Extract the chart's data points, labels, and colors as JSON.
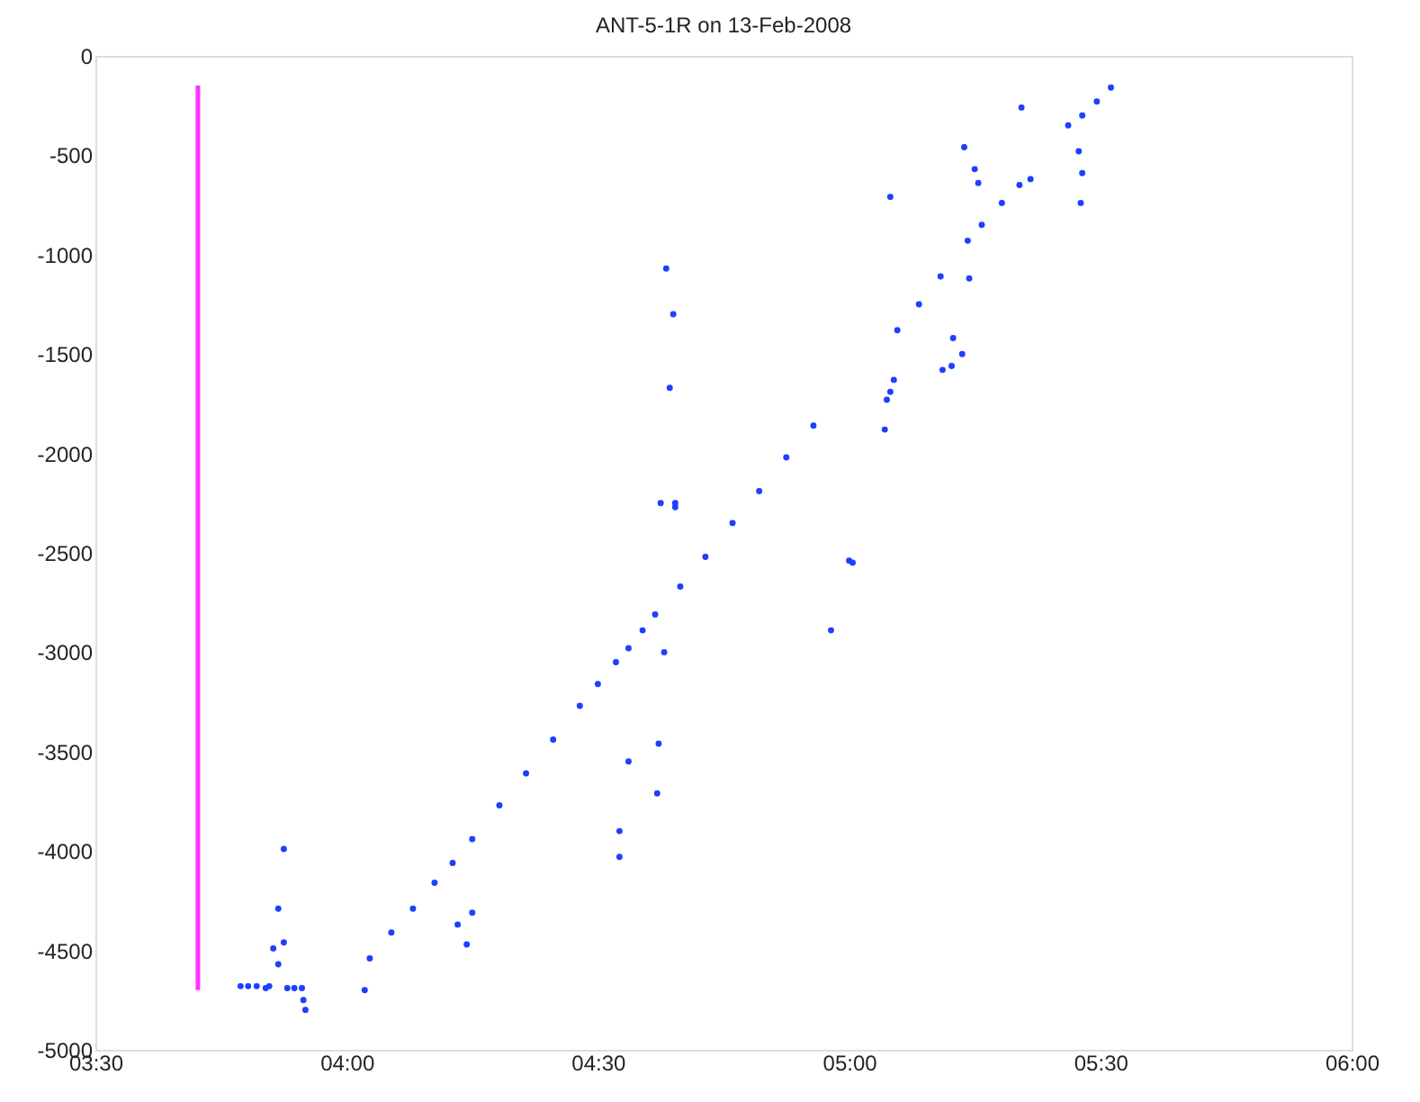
{
  "chart_data": {
    "type": "scatter",
    "title": "ANT-5-1R on 13-Feb-2008",
    "xlim": [
      3.5,
      6
    ],
    "ylim": [
      -5000,
      0
    ],
    "xticks": [
      {
        "value": 3.5,
        "label": "03:30"
      },
      {
        "value": 4,
        "label": "04:00"
      },
      {
        "value": 4.5,
        "label": "04:30"
      },
      {
        "value": 5,
        "label": "05:00"
      },
      {
        "value": 5.5,
        "label": "05:30"
      },
      {
        "value": 6,
        "label": "06:00"
      }
    ],
    "yticks": [
      -5000,
      -4500,
      -4000,
      -3500,
      -3000,
      -2500,
      -2000,
      -1500,
      -1000,
      -500,
      0
    ],
    "grid": false,
    "legend": false,
    "marker": "circle",
    "series": [
      {
        "type": "line",
        "color": "#ff33ff",
        "line_style": "solid",
        "marker": "none",
        "x": [
          3.704,
          3.704
        ],
        "values": [
          -150,
          -4700
        ]
      },
      {
        "color": "#1f3fff",
        "x": [
          4.046,
          4.089,
          4.132,
          4.175,
          4.211,
          4.25,
          4.304,
          4.357,
          4.411,
          4.464,
          4.5,
          4.536,
          4.561,
          4.589,
          4.614,
          4.664,
          4.714,
          4.768,
          4.821,
          4.875,
          4.929,
          5.096,
          5.139,
          5.182,
          5.236,
          5.264,
          5.304,
          5.339,
          5.361,
          5.436,
          5.464,
          5.493,
          5.521,
          3.789,
          3.804,
          3.821,
          3.839,
          3.846,
          3.854,
          3.864,
          3.864,
          3.875,
          3.875,
          3.882,
          3.896,
          3.911,
          3.914,
          3.918,
          4.036,
          4.221,
          4.239,
          4.25,
          4.543,
          4.543,
          4.561,
          4.618,
          4.621,
          4.632,
          4.625,
          4.654,
          4.654,
          4.643,
          4.65,
          4.636,
          4.964,
          5.0,
          5.007,
          5.071,
          5.075,
          5.082,
          5.089,
          5.082,
          5.186,
          5.204,
          5.225,
          5.207,
          5.239,
          5.229,
          5.25,
          5.257,
          5.343,
          5.457,
          5.464,
          5.461
        ],
        "values": [
          -4540,
          -4410,
          -4290,
          -4160,
          -4060,
          -3940,
          -3770,
          -3610,
          -3440,
          -3270,
          -3160,
          -3050,
          -2980,
          -2890,
          -2810,
          -2670,
          -2520,
          -2350,
          -2190,
          -2020,
          -1860,
          -1380,
          -1250,
          -1110,
          -930,
          -850,
          -740,
          -650,
          -620,
          -350,
          -300,
          -230,
          -160,
          -4680,
          -4680,
          -4680,
          -4690,
          -4680,
          -4490,
          -4290,
          -4570,
          -3990,
          -4460,
          -4690,
          -4690,
          -4690,
          -4750,
          -4800,
          -4700,
          -4370,
          -4470,
          -4310,
          -3900,
          -4030,
          -3550,
          -3710,
          -3460,
          -3000,
          -2250,
          -2250,
          -2270,
          -1670,
          -1300,
          -1070,
          -2890,
          -2540,
          -2550,
          -1880,
          -1730,
          -1690,
          -1630,
          -710,
          -1580,
          -1560,
          -1500,
          -1420,
          -1120,
          -460,
          -570,
          -640,
          -260,
          -480,
          -590,
          -740
        ]
      }
    ]
  }
}
